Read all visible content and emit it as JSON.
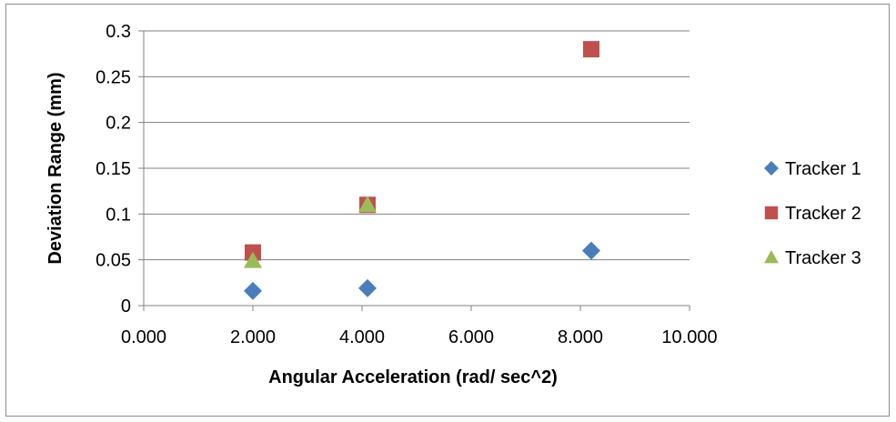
{
  "chart_data": {
    "type": "scatter",
    "xlabel": "Angular Acceleration (rad/ sec^2)",
    "ylabel": "Deviation Range (mm)",
    "xlim": [
      0,
      10
    ],
    "ylim": [
      0,
      0.3
    ],
    "x_ticks": [
      "0.000",
      "2.000",
      "4.000",
      "6.000",
      "8.000",
      "10.000"
    ],
    "x_tick_values": [
      0,
      2,
      4,
      6,
      8,
      10
    ],
    "y_ticks": [
      "0",
      "0.05",
      "0.1",
      "0.15",
      "0.2",
      "0.25",
      "0.3"
    ],
    "y_tick_values": [
      0,
      0.05,
      0.1,
      0.15,
      0.2,
      0.25,
      0.3
    ],
    "grid": "horizontal",
    "legend_position": "right",
    "series": [
      {
        "name": "Tracker 1",
        "marker": "diamond",
        "color": "#4a7ebb",
        "x": [
          2.0,
          4.1,
          8.2
        ],
        "y": [
          0.016,
          0.019,
          0.06
        ]
      },
      {
        "name": "Tracker 2",
        "marker": "square",
        "color": "#c0504d",
        "x": [
          2.0,
          4.1,
          8.2
        ],
        "y": [
          0.058,
          0.11,
          0.28
        ]
      },
      {
        "name": "Tracker 3",
        "marker": "triangle",
        "color": "#9bbb59",
        "x": [
          2.0,
          4.1
        ],
        "y": [
          0.049,
          0.11
        ]
      }
    ]
  }
}
